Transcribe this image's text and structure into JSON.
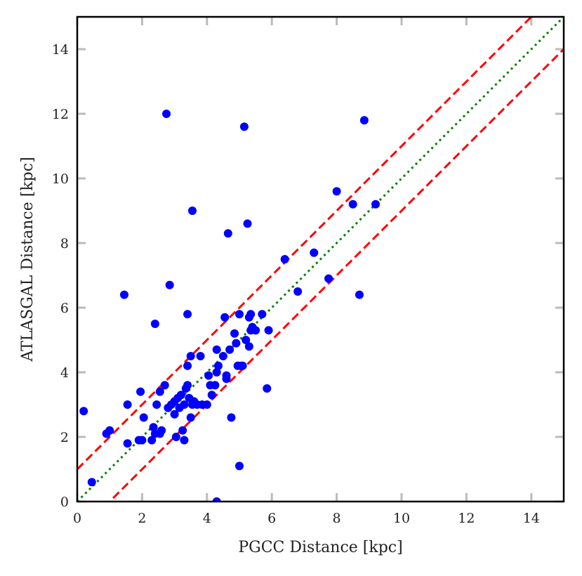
{
  "chart_data": {
    "type": "scatter",
    "title": "",
    "xlabel": "PGCC Distance [kpc]",
    "ylabel": "ATLASGAL Distance [kpc]",
    "xlim": [
      0,
      15
    ],
    "ylim": [
      0,
      15
    ],
    "xticks": [
      0,
      2,
      4,
      6,
      8,
      10,
      12,
      14
    ],
    "yticks": [
      0,
      2,
      4,
      6,
      8,
      10,
      12,
      14
    ],
    "xtick_labels": [
      "0",
      "2",
      "4",
      "6",
      "8",
      "10",
      "12",
      "14"
    ],
    "ytick_labels": [
      "0",
      "2",
      "4",
      "6",
      "8",
      "10",
      "12",
      "14"
    ],
    "grid": false,
    "colors": {
      "points": "#0000ff",
      "identity_line": "#008000",
      "offset_lines": "#ff0000",
      "axes": "#000000",
      "ticks": "#bbbbbb"
    },
    "lines": [
      {
        "name": "one-to-one",
        "style": "dotted",
        "color": "#008000",
        "offset": 0
      },
      {
        "name": "plus-1-kpc",
        "style": "dashed",
        "color": "#ff0000",
        "offset": 1
      },
      {
        "name": "minus-1-kpc",
        "style": "dashed",
        "color": "#ff0000",
        "offset": -1
      }
    ],
    "points": [
      [
        0.2,
        2.8
      ],
      [
        0.45,
        0.6
      ],
      [
        0.9,
        2.1
      ],
      [
        1.0,
        2.2
      ],
      [
        1.55,
        1.8
      ],
      [
        1.55,
        3.0
      ],
      [
        1.45,
        6.4
      ],
      [
        1.9,
        1.9
      ],
      [
        1.95,
        3.4
      ],
      [
        2.0,
        1.9
      ],
      [
        2.05,
        2.6
      ],
      [
        2.3,
        1.9
      ],
      [
        2.35,
        2.3
      ],
      [
        2.4,
        2.1
      ],
      [
        2.4,
        5.5
      ],
      [
        2.45,
        3.0
      ],
      [
        2.55,
        3.4
      ],
      [
        2.55,
        2.1
      ],
      [
        2.6,
        2.2
      ],
      [
        2.7,
        3.6
      ],
      [
        2.75,
        12.0
      ],
      [
        2.8,
        2.9
      ],
      [
        2.85,
        6.7
      ],
      [
        2.9,
        3.0
      ],
      [
        3.0,
        3.1
      ],
      [
        3.0,
        2.7
      ],
      [
        3.05,
        2.0
      ],
      [
        3.1,
        3.2
      ],
      [
        3.15,
        2.9
      ],
      [
        3.2,
        3.3
      ],
      [
        3.25,
        2.2
      ],
      [
        3.3,
        3.0
      ],
      [
        3.3,
        1.9
      ],
      [
        3.35,
        3.5
      ],
      [
        3.4,
        3.6
      ],
      [
        3.4,
        5.8
      ],
      [
        3.4,
        4.2
      ],
      [
        3.45,
        3.2
      ],
      [
        3.5,
        4.5
      ],
      [
        3.5,
        2.6
      ],
      [
        3.55,
        3.0
      ],
      [
        3.55,
        9.0
      ],
      [
        3.6,
        3.1
      ],
      [
        3.7,
        3.0
      ],
      [
        3.8,
        4.5
      ],
      [
        3.85,
        3.0
      ],
      [
        4.0,
        3.0
      ],
      [
        4.05,
        3.9
      ],
      [
        4.1,
        3.6
      ],
      [
        4.15,
        3.3
      ],
      [
        4.25,
        3.6
      ],
      [
        4.3,
        4.7
      ],
      [
        4.3,
        4.0
      ],
      [
        4.35,
        4.2
      ],
      [
        4.3,
        0.0
      ],
      [
        4.5,
        4.5
      ],
      [
        4.55,
        5.7
      ],
      [
        4.6,
        3.9
      ],
      [
        4.6,
        3.8
      ],
      [
        4.65,
        8.3
      ],
      [
        4.7,
        4.7
      ],
      [
        4.75,
        2.6
      ],
      [
        4.85,
        5.2
      ],
      [
        4.9,
        4.9
      ],
      [
        4.95,
        4.2
      ],
      [
        5.0,
        5.8
      ],
      [
        5.0,
        1.1
      ],
      [
        5.05,
        4.2
      ],
      [
        5.1,
        4.2
      ],
      [
        5.15,
        11.6
      ],
      [
        5.2,
        5.0
      ],
      [
        5.25,
        8.6
      ],
      [
        5.3,
        5.7
      ],
      [
        5.3,
        4.8
      ],
      [
        5.35,
        5.8
      ],
      [
        5.35,
        5.3
      ],
      [
        5.4,
        5.4
      ],
      [
        5.5,
        5.3
      ],
      [
        5.7,
        5.8
      ],
      [
        5.85,
        3.5
      ],
      [
        5.9,
        5.3
      ],
      [
        6.4,
        7.5
      ],
      [
        6.8,
        6.5
      ],
      [
        7.3,
        7.7
      ],
      [
        7.75,
        6.9
      ],
      [
        8.0,
        9.6
      ],
      [
        8.5,
        9.2
      ],
      [
        8.7,
        6.4
      ],
      [
        8.85,
        11.8
      ],
      [
        9.2,
        9.2
      ]
    ]
  }
}
